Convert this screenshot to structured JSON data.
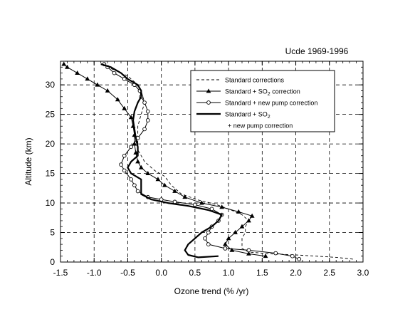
{
  "chart_data": {
    "type": "line",
    "title": "Ucde 1969-1996",
    "xlabel": "Ozone trend (% /yr)",
    "ylabel": "Altitude (km)",
    "xlim": [
      -1.5,
      3.0
    ],
    "ylim": [
      0,
      34
    ],
    "xticks": [
      "-1.5",
      "-1.0",
      "-0.5",
      "0.0",
      "0.5",
      "1.0",
      "1.5",
      "2.0",
      "2.5",
      "3.0"
    ],
    "yticks": [
      "0",
      "5",
      "10",
      "15",
      "20",
      "25",
      "30"
    ],
    "grid": true,
    "legend_position": "top-right",
    "series": [
      {
        "name": "Standard corrections",
        "style": "dashed",
        "points": [
          [
            2.85,
            0.5
          ],
          [
            2.6,
            0.8
          ],
          [
            2.3,
            1.0
          ],
          [
            2.0,
            1.2
          ],
          [
            1.6,
            1.4
          ],
          [
            1.3,
            1.7
          ],
          [
            1.2,
            2.3
          ],
          [
            1.2,
            3.0
          ],
          [
            1.2,
            4.0
          ],
          [
            1.25,
            5.0
          ],
          [
            1.25,
            6.0
          ],
          [
            1.3,
            7.0
          ],
          [
            1.2,
            8.0
          ],
          [
            1.0,
            9.0
          ],
          [
            0.8,
            9.8
          ],
          [
            0.55,
            10.5
          ],
          [
            0.3,
            11.5
          ],
          [
            0.15,
            13.0
          ],
          [
            0.05,
            14.5
          ],
          [
            -0.1,
            15.5
          ],
          [
            -0.25,
            17.0
          ],
          [
            -0.35,
            19.0
          ],
          [
            -0.35,
            21.0
          ],
          [
            -0.35,
            23.0
          ],
          [
            -0.3,
            25.0
          ],
          [
            -0.25,
            27.0
          ],
          [
            -0.3,
            29.0
          ],
          [
            -0.4,
            30.5
          ],
          [
            -0.5,
            31.5
          ],
          [
            -0.7,
            32.5
          ],
          [
            -0.9,
            33.5
          ]
        ]
      },
      {
        "name": "Standard + SO2 correction",
        "marker": "triangle",
        "points": [
          [
            1.55,
            1.0
          ],
          [
            1.3,
            1.4
          ],
          [
            1.05,
            2.0
          ],
          [
            0.95,
            3.0
          ],
          [
            1.0,
            4.0
          ],
          [
            1.1,
            5.0
          ],
          [
            1.2,
            6.0
          ],
          [
            1.3,
            7.0
          ],
          [
            1.35,
            7.8
          ],
          [
            1.15,
            8.5
          ],
          [
            0.9,
            9.3
          ],
          [
            0.6,
            10.0
          ],
          [
            0.35,
            11.0
          ],
          [
            0.2,
            12.0
          ],
          [
            0.05,
            13.0
          ],
          [
            -0.05,
            14.0
          ],
          [
            -0.2,
            15.0
          ],
          [
            -0.3,
            16.0
          ],
          [
            -0.35,
            17.0
          ],
          [
            -0.38,
            18.5
          ],
          [
            -0.4,
            20.0
          ],
          [
            -0.4,
            21.5
          ],
          [
            -0.42,
            23.0
          ],
          [
            -0.45,
            24.5
          ],
          [
            -0.55,
            26.0
          ],
          [
            -0.65,
            27.5
          ],
          [
            -0.8,
            29.0
          ],
          [
            -0.95,
            30.0
          ],
          [
            -1.1,
            31.0
          ],
          [
            -1.25,
            32.0
          ],
          [
            -1.4,
            33.0
          ],
          [
            -1.45,
            33.5
          ]
        ]
      },
      {
        "name": "Standard + new pump correction",
        "marker": "circle",
        "points": [
          [
            2.05,
            0.5
          ],
          [
            1.95,
            1.0
          ],
          [
            1.7,
            1.5
          ],
          [
            1.3,
            2.0
          ],
          [
            0.95,
            2.3
          ],
          [
            0.7,
            3.0
          ],
          [
            0.65,
            4.0
          ],
          [
            0.7,
            5.0
          ],
          [
            0.75,
            6.0
          ],
          [
            0.85,
            7.0
          ],
          [
            0.9,
            8.0
          ],
          [
            0.75,
            9.0
          ],
          [
            0.5,
            9.7
          ],
          [
            0.2,
            10.2
          ],
          [
            0.0,
            10.6
          ],
          [
            -0.2,
            11.0
          ],
          [
            -0.35,
            12.0
          ],
          [
            -0.4,
            13.0
          ],
          [
            -0.45,
            14.0
          ],
          [
            -0.55,
            15.5
          ],
          [
            -0.6,
            16.5
          ],
          [
            -0.55,
            18.0
          ],
          [
            -0.45,
            19.5
          ],
          [
            -0.35,
            21.0
          ],
          [
            -0.25,
            22.5
          ],
          [
            -0.2,
            24.0
          ],
          [
            -0.2,
            25.5
          ],
          [
            -0.25,
            27.0
          ],
          [
            -0.3,
            28.0
          ],
          [
            -0.32,
            29.0
          ],
          [
            -0.4,
            30.0
          ],
          [
            -0.55,
            31.0
          ],
          [
            -0.7,
            32.0
          ],
          [
            -0.8,
            33.0
          ],
          [
            -0.85,
            33.5
          ]
        ]
      },
      {
        "name": "Standard + SO2 + new pump correction",
        "style": "thick",
        "points": [
          [
            0.85,
            1.0
          ],
          [
            0.55,
            0.8
          ],
          [
            0.4,
            1.2
          ],
          [
            0.35,
            2.0
          ],
          [
            0.4,
            3.0
          ],
          [
            0.5,
            4.0
          ],
          [
            0.6,
            5.0
          ],
          [
            0.75,
            6.0
          ],
          [
            0.85,
            7.0
          ],
          [
            0.9,
            8.0
          ],
          [
            0.7,
            8.8
          ],
          [
            0.4,
            9.5
          ],
          [
            0.1,
            10.0
          ],
          [
            -0.15,
            10.6
          ],
          [
            -0.3,
            11.5
          ],
          [
            -0.3,
            12.5
          ],
          [
            -0.3,
            14.0
          ],
          [
            -0.45,
            15.0
          ],
          [
            -0.5,
            16.0
          ],
          [
            -0.45,
            17.0
          ],
          [
            -0.35,
            18.0
          ],
          [
            -0.35,
            19.5
          ],
          [
            -0.38,
            21.0
          ],
          [
            -0.4,
            22.5
          ],
          [
            -0.42,
            24.0
          ],
          [
            -0.4,
            25.5
          ],
          [
            -0.35,
            27.0
          ],
          [
            -0.3,
            28.0
          ],
          [
            -0.3,
            29.0
          ],
          [
            -0.35,
            30.0
          ],
          [
            -0.5,
            31.0
          ],
          [
            -0.6,
            32.0
          ],
          [
            -0.75,
            33.0
          ],
          [
            -0.9,
            33.5
          ]
        ]
      }
    ],
    "legend": {
      "entries": [
        {
          "label": "Standard corrections",
          "subscript": ""
        },
        {
          "label": "Standard + SO",
          "subscript": "2",
          "suffix": " correction"
        },
        {
          "label": "Standard + new pump correction",
          "subscript": ""
        },
        {
          "label": "Standard + SO",
          "subscript": "2",
          "suffix": ""
        }
      ],
      "extra_line": "+ new pump correction"
    }
  }
}
